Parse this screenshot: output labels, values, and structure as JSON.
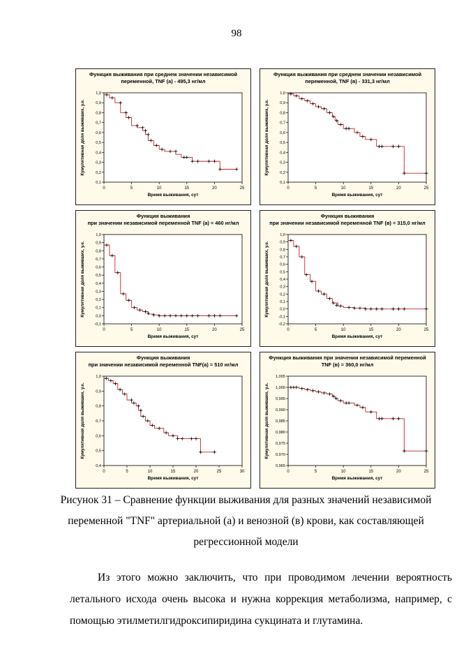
{
  "page": {
    "number": "98"
  },
  "figure": {
    "caption": "Рисунок 31 – Сравнение функции выживания для разных значений независимой переменной \"TNF\" артериальной (а) и венозной (в) крови, как составляющей регрессионной модели"
  },
  "paragraph": {
    "text": "Из этого можно заключить, что при проводимом лечении вероятность летального исхода очень высока и нужна коррекция метаболизма, например, с помощью этилметилгидроксипиридина сукцината и глутамина."
  },
  "style": {
    "panel_bg": "#fffaea",
    "plot_bg": "#ffffff",
    "line_color": "#cc2222",
    "marker_color": "#000000"
  },
  "chart_data": [
    {
      "type": "line",
      "step": true,
      "title": [
        "Функция выживания при среднем значении независимой",
        "переменной, TNF (а) - 495,3 нг/мл"
      ],
      "xlabel": "Время выживания, сут",
      "ylabel": "Кумулятивная доля выживших, у.е.",
      "xlim": [
        0,
        25
      ],
      "xticks": [
        "0",
        "5",
        "10",
        "15",
        "20",
        "25"
      ],
      "ylim": [
        0.1,
        1.0
      ],
      "yticks": [
        "0,1",
        "0,2",
        "0,3",
        "0,4",
        "0,5",
        "0,6",
        "0,7",
        "0,8",
        "0,9",
        "1,0"
      ],
      "steps": [
        [
          0,
          0.98
        ],
        [
          1,
          0.95
        ],
        [
          2,
          0.9
        ],
        [
          3,
          0.8
        ],
        [
          4,
          0.75
        ],
        [
          5,
          0.67
        ],
        [
          6,
          0.65
        ],
        [
          7,
          0.62
        ],
        [
          7.5,
          0.58
        ],
        [
          8,
          0.52
        ],
        [
          9,
          0.47
        ],
        [
          10,
          0.43
        ],
        [
          11,
          0.41
        ],
        [
          13,
          0.38
        ],
        [
          14,
          0.35
        ],
        [
          16,
          0.31
        ],
        [
          21,
          0.23
        ],
        [
          24,
          0.23
        ]
      ],
      "censored": [
        [
          0.5,
          0.98
        ],
        [
          1.5,
          0.95
        ],
        [
          3,
          0.9
        ],
        [
          4,
          0.8
        ],
        [
          4.5,
          0.75
        ],
        [
          6,
          0.67
        ],
        [
          7,
          0.65
        ],
        [
          7.5,
          0.62
        ],
        [
          8,
          0.58
        ],
        [
          8.5,
          0.52
        ],
        [
          9.5,
          0.47
        ],
        [
          10.5,
          0.43
        ],
        [
          12,
          0.41
        ],
        [
          13,
          0.41
        ],
        [
          14.5,
          0.35
        ],
        [
          15,
          0.35
        ],
        [
          16,
          0.31
        ],
        [
          17,
          0.31
        ],
        [
          19,
          0.31
        ],
        [
          20,
          0.31
        ],
        [
          21,
          0.23
        ],
        [
          24,
          0.23
        ]
      ]
    },
    {
      "type": "line",
      "step": true,
      "title": [
        "Функция выживания при среднем значении независимой",
        "переменной, TNF (в) - 331,3 нг/мл"
      ],
      "xlabel": "Время выживания, сут",
      "ylabel": "Кумулятивная доля выживших, у.е.",
      "xlim": [
        0,
        25
      ],
      "xticks": [
        "0",
        "5",
        "10",
        "15",
        "20",
        "25"
      ],
      "ylim": [
        0.1,
        1.0
      ],
      "yticks": [
        "0,1",
        "0,2",
        "0,3",
        "0,4",
        "0,5",
        "0,6",
        "0,7",
        "0,8",
        "0,9",
        "1,0"
      ],
      "steps": [
        [
          0,
          0.99
        ],
        [
          1,
          0.97
        ],
        [
          2,
          0.94
        ],
        [
          3,
          0.92
        ],
        [
          4,
          0.89
        ],
        [
          5,
          0.86
        ],
        [
          6,
          0.84
        ],
        [
          7,
          0.8
        ],
        [
          8,
          0.76
        ],
        [
          8.5,
          0.72
        ],
        [
          9,
          0.68
        ],
        [
          10,
          0.64
        ],
        [
          12,
          0.6
        ],
        [
          13,
          0.56
        ],
        [
          14,
          0.53
        ],
        [
          16,
          0.46
        ],
        [
          21,
          0.19
        ],
        [
          25,
          0.19
        ]
      ],
      "censored": [
        [
          0.5,
          0.99
        ],
        [
          1.5,
          0.97
        ],
        [
          2.5,
          0.94
        ],
        [
          3.5,
          0.92
        ],
        [
          4.5,
          0.89
        ],
        [
          5.5,
          0.86
        ],
        [
          6.5,
          0.84
        ],
        [
          7.5,
          0.8
        ],
        [
          8.2,
          0.76
        ],
        [
          8.8,
          0.72
        ],
        [
          9.5,
          0.68
        ],
        [
          10.5,
          0.64
        ],
        [
          11,
          0.64
        ],
        [
          12.5,
          0.6
        ],
        [
          13.5,
          0.56
        ],
        [
          15,
          0.53
        ],
        [
          16.5,
          0.46
        ],
        [
          17,
          0.46
        ],
        [
          19,
          0.46
        ],
        [
          20,
          0.46
        ],
        [
          21,
          0.19
        ],
        [
          25,
          0.19
        ]
      ]
    },
    {
      "type": "line",
      "step": true,
      "title": [
        "Функция выживания",
        "при   значении независимой переменной TNF (а) = 460 нг/мл"
      ],
      "xlabel": "Время выживания, сут",
      "ylabel": "Кумулятивная доля выживших, у.е.",
      "xlim": [
        0,
        25
      ],
      "xticks": [
        "0",
        "5",
        "10",
        "15",
        "20",
        "25"
      ],
      "ylim": [
        -0.1,
        1.0
      ],
      "yticks": [
        "-0,1",
        "0,0",
        "0,1",
        "0,2",
        "0,3",
        "0,4",
        "0,5",
        "0,6",
        "0,7",
        "0,8",
        "0,9",
        "1,0"
      ],
      "steps": [
        [
          0,
          0.87
        ],
        [
          1,
          0.74
        ],
        [
          2,
          0.53
        ],
        [
          3,
          0.27
        ],
        [
          4,
          0.19
        ],
        [
          5,
          0.1
        ],
        [
          6,
          0.07
        ],
        [
          7,
          0.05
        ],
        [
          8,
          0.02
        ],
        [
          9,
          0.01
        ],
        [
          10,
          0.0
        ],
        [
          24,
          0.0
        ]
      ],
      "censored": [
        [
          0.5,
          0.87
        ],
        [
          1.5,
          0.74
        ],
        [
          2.5,
          0.53
        ],
        [
          3.5,
          0.27
        ],
        [
          4.5,
          0.19
        ],
        [
          5.5,
          0.1
        ],
        [
          6.5,
          0.07
        ],
        [
          7.5,
          0.05
        ],
        [
          8,
          0.03
        ],
        [
          9,
          0.01
        ],
        [
          10,
          0.0
        ],
        [
          11,
          0.0
        ],
        [
          12,
          0.0
        ],
        [
          13,
          0.0
        ],
        [
          14,
          0.0
        ],
        [
          15,
          0.0
        ],
        [
          16,
          0.0
        ],
        [
          17,
          0.0
        ],
        [
          19,
          0.0
        ],
        [
          20,
          0.0
        ],
        [
          21,
          0.0
        ],
        [
          24,
          0.0
        ]
      ]
    },
    {
      "type": "line",
      "step": true,
      "title": [
        "Функция выживания",
        "при   значении независимой переменной TNF (в) = 315,0 нг/мл"
      ],
      "xlabel": "Время выживания, сут",
      "ylabel": "Кумулятивная доля выживших, у.е.",
      "xlim": [
        0,
        25
      ],
      "xticks": [
        "0",
        "5",
        "10",
        "15",
        "20",
        "25"
      ],
      "ylim": [
        -0.2,
        1.0
      ],
      "yticks": [
        "-0,2",
        "-0,1",
        "0,0",
        "0,1",
        "0,2",
        "0,3",
        "0,4",
        "0,5",
        "0,6",
        "0,7",
        "0,8",
        "0,9",
        "1,0"
      ],
      "steps": [
        [
          0,
          0.92
        ],
        [
          1,
          0.84
        ],
        [
          2,
          0.7
        ],
        [
          3,
          0.46
        ],
        [
          4,
          0.37
        ],
        [
          5,
          0.24
        ],
        [
          6,
          0.2
        ],
        [
          7,
          0.14
        ],
        [
          8,
          0.08
        ],
        [
          9,
          0.04
        ],
        [
          10,
          0.02
        ],
        [
          12,
          0.01
        ],
        [
          14,
          0.0
        ],
        [
          25,
          0.0
        ]
      ],
      "censored": [
        [
          0.5,
          0.92
        ],
        [
          1.5,
          0.84
        ],
        [
          2.5,
          0.7
        ],
        [
          3.3,
          0.46
        ],
        [
          4.3,
          0.37
        ],
        [
          5.5,
          0.24
        ],
        [
          6.5,
          0.2
        ],
        [
          7.5,
          0.14
        ],
        [
          8.2,
          0.08
        ],
        [
          8.8,
          0.05
        ],
        [
          9.5,
          0.04
        ],
        [
          11,
          0.02
        ],
        [
          12,
          0.01
        ],
        [
          13,
          0.01
        ],
        [
          14,
          0.0
        ],
        [
          15,
          0.0
        ],
        [
          16,
          0.0
        ],
        [
          17,
          0.0
        ],
        [
          19,
          0.0
        ],
        [
          20,
          0.0
        ],
        [
          21,
          0.0
        ],
        [
          25,
          0.0
        ]
      ]
    },
    {
      "type": "line",
      "step": true,
      "title": [
        "Функция выживания",
        "при   значении независимой переменной TNF(а) = 510 нг/мл"
      ],
      "xlabel": "Время выживания, сут",
      "ylabel": "Кумулятивная доля выживших, у.е.",
      "xlim": [
        0,
        30
      ],
      "xticks": [
        "0",
        "5",
        "10",
        "15",
        "20",
        "25",
        "30"
      ],
      "ylim": [
        0.4,
        1.0
      ],
      "yticks": [
        "0,4",
        "0,5",
        "0,6",
        "0,7",
        "0,8",
        "0,9",
        "1,0"
      ],
      "steps": [
        [
          0,
          0.985
        ],
        [
          1,
          0.97
        ],
        [
          2,
          0.95
        ],
        [
          3,
          0.91
        ],
        [
          4,
          0.88
        ],
        [
          5,
          0.84
        ],
        [
          6,
          0.82
        ],
        [
          7,
          0.8
        ],
        [
          7.5,
          0.77
        ],
        [
          8,
          0.73
        ],
        [
          9,
          0.7
        ],
        [
          10,
          0.67
        ],
        [
          11,
          0.65
        ],
        [
          13,
          0.62
        ],
        [
          14,
          0.6
        ],
        [
          16,
          0.58
        ],
        [
          21,
          0.49
        ],
        [
          24,
          0.49
        ]
      ],
      "censored": [
        [
          0.5,
          0.985
        ],
        [
          1.5,
          0.97
        ],
        [
          2.5,
          0.95
        ],
        [
          3.5,
          0.91
        ],
        [
          4.5,
          0.88
        ],
        [
          6,
          0.84
        ],
        [
          6.5,
          0.82
        ],
        [
          7.5,
          0.8
        ],
        [
          8,
          0.77
        ],
        [
          8.5,
          0.73
        ],
        [
          9.5,
          0.7
        ],
        [
          10.5,
          0.67
        ],
        [
          12,
          0.65
        ],
        [
          13.5,
          0.62
        ],
        [
          15,
          0.6
        ],
        [
          16,
          0.58
        ],
        [
          17,
          0.58
        ],
        [
          19,
          0.58
        ],
        [
          20,
          0.58
        ],
        [
          21,
          0.49
        ],
        [
          24,
          0.49
        ]
      ]
    },
    {
      "type": "line",
      "step": true,
      "title": [
        "Функция выживания при значении независимой переменной",
        "TNF (в) = 360,0 нг/мл"
      ],
      "xlabel": "Время выживания, сут",
      "ylabel": "Кумулятивная доля выживших, у.е.",
      "xlim": [
        0,
        25
      ],
      "xticks": [
        "0",
        "5",
        "10",
        "15",
        "20",
        "25"
      ],
      "ylim": [
        0.965,
        1.005
      ],
      "yticks": [
        "0,965",
        "0,970",
        "0,975",
        "0,980",
        "0,985",
        "0,990",
        "0,995",
        "1,000",
        "1,005"
      ],
      "steps": [
        [
          0,
          1.0
        ],
        [
          2,
          0.9995
        ],
        [
          3,
          0.999
        ],
        [
          4,
          0.9985
        ],
        [
          5,
          0.998
        ],
        [
          6,
          0.9975
        ],
        [
          7,
          0.997
        ],
        [
          8,
          0.996
        ],
        [
          8.5,
          0.995
        ],
        [
          9,
          0.994
        ],
        [
          10,
          0.993
        ],
        [
          12,
          0.992
        ],
        [
          13,
          0.991
        ],
        [
          14,
          0.989
        ],
        [
          16,
          0.986
        ],
        [
          21,
          0.9715
        ],
        [
          25,
          0.9715
        ]
      ],
      "censored": [
        [
          0.5,
          1.0
        ],
        [
          1,
          1.0
        ],
        [
          1.5,
          1.0
        ],
        [
          2.5,
          0.9995
        ],
        [
          3.5,
          0.999
        ],
        [
          4.5,
          0.9985
        ],
        [
          5.5,
          0.998
        ],
        [
          6.5,
          0.9975
        ],
        [
          7.5,
          0.997
        ],
        [
          8.2,
          0.996
        ],
        [
          8.7,
          0.995
        ],
        [
          9.5,
          0.994
        ],
        [
          10.5,
          0.993
        ],
        [
          11,
          0.993
        ],
        [
          12.5,
          0.992
        ],
        [
          13.5,
          0.991
        ],
        [
          15,
          0.989
        ],
        [
          16.5,
          0.986
        ],
        [
          17,
          0.986
        ],
        [
          19,
          0.986
        ],
        [
          20,
          0.986
        ],
        [
          21,
          0.9715
        ],
        [
          25,
          0.9715
        ]
      ]
    }
  ]
}
